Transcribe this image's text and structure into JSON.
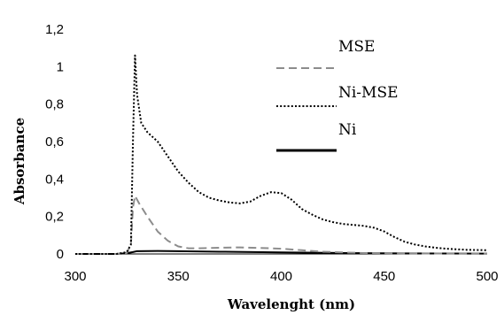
{
  "chart_data": {
    "type": "line",
    "title": "",
    "xlabel": "Wavelenght (nm)",
    "ylabel": "Absorbance",
    "xlim": [
      300,
      500
    ],
    "ylim": [
      0,
      1.2
    ],
    "x_ticks": [
      "300",
      "350",
      "400",
      "450",
      "500"
    ],
    "y_ticks": [
      "0",
      "0,2",
      "0,4",
      "0,6",
      "0,8",
      "1",
      "1,2"
    ],
    "grid": false,
    "legend_position": "top-right",
    "series": [
      {
        "name": "MSE",
        "color": "#8c8c8c",
        "style": "dashed",
        "points": [
          [
            300,
            0
          ],
          [
            320,
            0
          ],
          [
            325,
            0.005
          ],
          [
            327,
            0.05
          ],
          [
            328,
            0.25
          ],
          [
            329,
            0.31
          ],
          [
            331,
            0.27
          ],
          [
            335,
            0.2
          ],
          [
            340,
            0.12
          ],
          [
            345,
            0.07
          ],
          [
            350,
            0.04
          ],
          [
            355,
            0.03
          ],
          [
            360,
            0.03
          ],
          [
            370,
            0.033
          ],
          [
            380,
            0.035
          ],
          [
            390,
            0.032
          ],
          [
            400,
            0.028
          ],
          [
            410,
            0.02
          ],
          [
            420,
            0.012
          ],
          [
            430,
            0.008
          ],
          [
            440,
            0.005
          ],
          [
            460,
            0.003
          ],
          [
            480,
            0.002
          ],
          [
            500,
            0.002
          ]
        ]
      },
      {
        "name": "Ni-MSE",
        "color": "#000000",
        "style": "dotted",
        "points": [
          [
            300,
            0
          ],
          [
            320,
            0
          ],
          [
            325,
            0.01
          ],
          [
            327,
            0.05
          ],
          [
            328,
            0.6
          ],
          [
            329,
            1.06
          ],
          [
            330,
            0.85
          ],
          [
            332,
            0.7
          ],
          [
            335,
            0.65
          ],
          [
            340,
            0.6
          ],
          [
            345,
            0.52
          ],
          [
            350,
            0.44
          ],
          [
            355,
            0.38
          ],
          [
            360,
            0.33
          ],
          [
            365,
            0.3
          ],
          [
            370,
            0.285
          ],
          [
            375,
            0.275
          ],
          [
            380,
            0.27
          ],
          [
            385,
            0.28
          ],
          [
            390,
            0.31
          ],
          [
            395,
            0.33
          ],
          [
            400,
            0.325
          ],
          [
            405,
            0.29
          ],
          [
            410,
            0.24
          ],
          [
            415,
            0.21
          ],
          [
            420,
            0.185
          ],
          [
            425,
            0.17
          ],
          [
            430,
            0.16
          ],
          [
            435,
            0.155
          ],
          [
            440,
            0.15
          ],
          [
            445,
            0.14
          ],
          [
            450,
            0.12
          ],
          [
            455,
            0.09
          ],
          [
            460,
            0.065
          ],
          [
            465,
            0.05
          ],
          [
            470,
            0.04
          ],
          [
            475,
            0.033
          ],
          [
            480,
            0.028
          ],
          [
            490,
            0.022
          ],
          [
            500,
            0.02
          ]
        ]
      },
      {
        "name": "Ni",
        "color": "#000000",
        "style": "solid",
        "points": [
          [
            300,
            0
          ],
          [
            320,
            0
          ],
          [
            325,
            0.004
          ],
          [
            328,
            0.01
          ],
          [
            330,
            0.015
          ],
          [
            340,
            0.016
          ],
          [
            350,
            0.015
          ],
          [
            370,
            0.012
          ],
          [
            400,
            0.008
          ],
          [
            430,
            0.005
          ],
          [
            460,
            0.003
          ],
          [
            500,
            0.002
          ]
        ]
      }
    ]
  }
}
